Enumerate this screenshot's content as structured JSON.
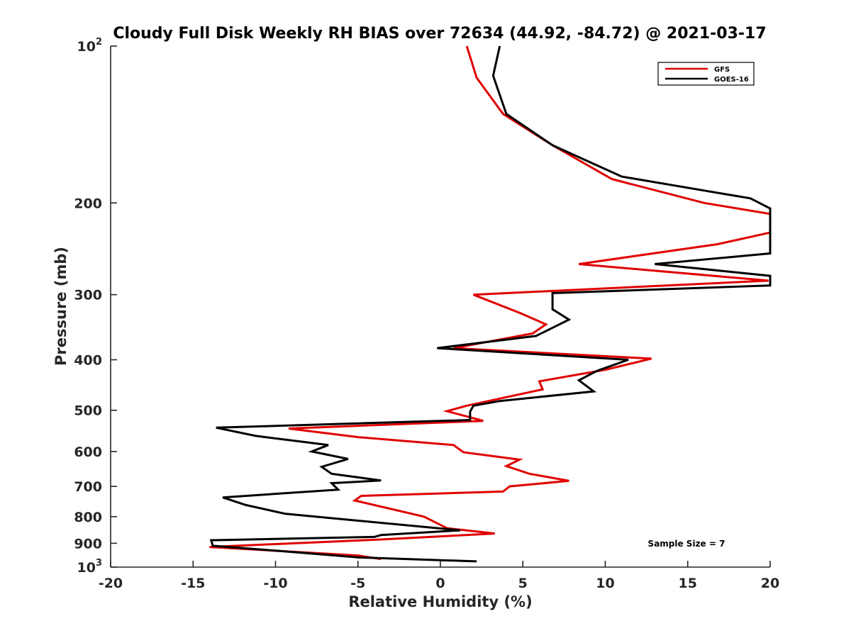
{
  "chart_data": {
    "type": "line",
    "title": "Cloudy Full Disk Weekly RH BIAS over 72634 (44.92, -84.72) @ 2021-03-17",
    "xlabel": "Relative Humidity (%)",
    "ylabel": "Pressure (mb)",
    "xlim": [
      -20,
      20
    ],
    "ylim": [
      100,
      1000
    ],
    "y_scale": "log",
    "y_reversed": true,
    "grid": false,
    "legend_position": "top-right",
    "xticks": [
      -20,
      -15,
      -10,
      -5,
      0,
      5,
      10,
      15,
      20
    ],
    "xtick_labels": [
      "-20",
      "-15",
      "-10",
      "-5",
      "0",
      "5",
      "10",
      "15",
      "20"
    ],
    "yticks": [
      {
        "value": 100,
        "base": "10",
        "exp": "2"
      },
      {
        "value": 200,
        "text": "200"
      },
      {
        "value": 300,
        "text": "300"
      },
      {
        "value": 400,
        "text": "400"
      },
      {
        "value": 500,
        "text": "500"
      },
      {
        "value": 600,
        "text": "600"
      },
      {
        "value": 700,
        "text": "700"
      },
      {
        "value": 800,
        "text": "800"
      },
      {
        "value": 900,
        "text": "900"
      },
      {
        "value": 1000,
        "base": "10",
        "exp": "3"
      }
    ],
    "annotation": "Sample Size = 7",
    "series": [
      {
        "name": "GFS",
        "color": "#e00000",
        "points": [
          [
            1.6,
            100
          ],
          [
            2.2,
            115
          ],
          [
            3.8,
            135
          ],
          [
            6.8,
            155
          ],
          [
            10.4,
            180
          ],
          [
            16.0,
            200
          ],
          [
            20.5,
            210
          ],
          [
            20.5,
            228
          ],
          [
            16.8,
            240
          ],
          [
            8.4,
            262
          ],
          [
            19.9,
            282
          ],
          [
            2.0,
            300
          ],
          [
            4.8,
            325
          ],
          [
            6.4,
            342
          ],
          [
            5.6,
            356
          ],
          [
            0.8,
            380
          ],
          [
            12.8,
            398
          ],
          [
            10.0,
            418
          ],
          [
            6.0,
            440
          ],
          [
            6.2,
            456
          ],
          [
            1.6,
            490
          ],
          [
            0.4,
            502
          ],
          [
            2.6,
            524
          ],
          [
            -9.2,
            542
          ],
          [
            -5.0,
            563
          ],
          [
            0.8,
            583
          ],
          [
            1.4,
            602
          ],
          [
            4.8,
            622
          ],
          [
            4.0,
            640
          ],
          [
            5.4,
            662
          ],
          [
            7.8,
            683
          ],
          [
            4.2,
            700
          ],
          [
            3.8,
            716
          ],
          [
            -4.8,
            730
          ],
          [
            -5.2,
            745
          ],
          [
            -1.0,
            800
          ],
          [
            0.4,
            842
          ],
          [
            3.3,
            862
          ],
          [
            -3.6,
            885
          ],
          [
            -14.0,
            915
          ],
          [
            -5.0,
            950
          ],
          [
            -3.6,
            965
          ]
        ]
      },
      {
        "name": "GOES-16",
        "color": "#000000",
        "points": [
          [
            3.6,
            100
          ],
          [
            3.2,
            114
          ],
          [
            4.0,
            135
          ],
          [
            6.8,
            155
          ],
          [
            11.0,
            178
          ],
          [
            18.8,
            196
          ],
          [
            20.4,
            205
          ],
          [
            20.4,
            250
          ],
          [
            13.0,
            262
          ],
          [
            20.4,
            276
          ],
          [
            20.4,
            288
          ],
          [
            6.8,
            298
          ],
          [
            6.8,
            320
          ],
          [
            7.8,
            335
          ],
          [
            5.8,
            360
          ],
          [
            -0.2,
            380
          ],
          [
            11.4,
            400
          ],
          [
            9.5,
            420
          ],
          [
            8.4,
            438
          ],
          [
            9.3,
            460
          ],
          [
            3.6,
            480
          ],
          [
            2.0,
            490
          ],
          [
            1.8,
            503
          ],
          [
            1.8,
            522
          ],
          [
            -13.6,
            540
          ],
          [
            -11.2,
            560
          ],
          [
            -6.8,
            583
          ],
          [
            -7.8,
            600
          ],
          [
            -5.6,
            620
          ],
          [
            -7.2,
            642
          ],
          [
            -6.6,
            662
          ],
          [
            -3.6,
            682
          ],
          [
            -6.6,
            690
          ],
          [
            -6.2,
            710
          ],
          [
            -13.2,
            735
          ],
          [
            -11.8,
            760
          ],
          [
            -9.4,
            790
          ],
          [
            1.2,
            850
          ],
          [
            -3.6,
            868
          ],
          [
            -4.0,
            875
          ],
          [
            -13.9,
            888
          ],
          [
            -13.8,
            910
          ],
          [
            -10.0,
            930
          ],
          [
            -5.0,
            958
          ],
          [
            2.2,
            975
          ]
        ]
      }
    ]
  }
}
